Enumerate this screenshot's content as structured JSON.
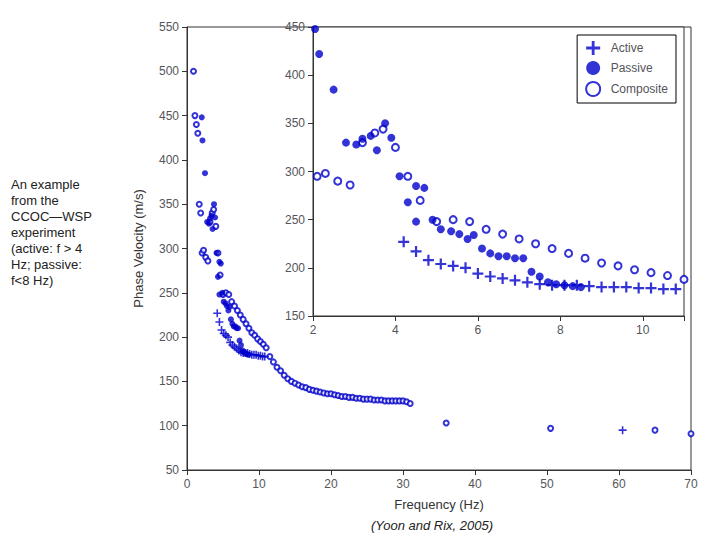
{
  "chart_data": [
    {
      "type": "scatter",
      "title": "An example\nfrom the\nCCOC—WSP\nexperiment\n(active: f > 4\nHz; passive:\nf<8 Hz)",
      "annotation": "(Yoon and Rix, 2005)",
      "xlabel": "Frequency (Hz)",
      "ylabel": "Phase Velocity (m/s)",
      "xlim": [
        0,
        70
      ],
      "ylim": [
        50,
        550
      ],
      "xticks": [
        0,
        10,
        20,
        30,
        40,
        50,
        60,
        70
      ],
      "yticks": [
        50,
        100,
        150,
        200,
        250,
        300,
        350,
        400,
        450,
        500,
        550
      ],
      "grid": false,
      "color": "#0000CC",
      "series": [
        {
          "name": "Active",
          "marker": "plus",
          "x": [
            4.2,
            4.5,
            4.8,
            5.1,
            5.4,
            5.7,
            6.0,
            6.3,
            6.6,
            6.9,
            7.2,
            7.5,
            7.8,
            8.1,
            8.4,
            8.7,
            9.0,
            9.3,
            9.6,
            9.9,
            10.2,
            10.5,
            10.8,
            60.5
          ],
          "values": [
            227,
            217,
            208,
            204,
            202,
            200,
            194,
            191,
            189,
            187,
            185,
            183,
            182,
            182,
            182,
            181,
            180,
            180,
            180,
            179,
            179,
            178,
            178,
            95
          ]
        },
        {
          "name": "Passive",
          "marker": "circle",
          "x": [
            2.05,
            2.15,
            2.5,
            2.8,
            3.05,
            3.2,
            3.4,
            3.55,
            3.75,
            3.9,
            4.1,
            4.3,
            4.5,
            4.5,
            4.7,
            4.9,
            5.1,
            5.35,
            5.55,
            5.75,
            5.9,
            6.1,
            6.3,
            6.5,
            6.7,
            6.9,
            7.1,
            7.3,
            7.5,
            7.7,
            7.9,
            8.1,
            8.3,
            8.5
          ],
          "values": [
            448,
            422,
            385,
            330,
            328,
            334,
            337,
            322,
            350,
            335,
            295,
            268,
            248,
            285,
            283,
            250,
            240,
            238,
            235,
            230,
            234,
            220,
            215,
            212,
            212,
            210,
            210,
            196,
            191,
            185,
            183,
            182,
            181,
            180
          ]
        },
        {
          "name": "Composite",
          "marker": "open_circle",
          "x": [
            0.9,
            1.1,
            1.3,
            1.5,
            1.7,
            1.9,
            2.1,
            2.3,
            2.6,
            2.9,
            3.2,
            3.5,
            3.7,
            4.0,
            4.3,
            4.6,
            5.0,
            5.4,
            5.8,
            6.2,
            6.6,
            7.0,
            7.4,
            7.8,
            8.2,
            8.6,
            9.0,
            9.4,
            9.8,
            10.2,
            10.6,
            11.0,
            11.5,
            12.0,
            12.5,
            13.0,
            13.5,
            14.0,
            14.5,
            15.0,
            15.5,
            16.0,
            16.5,
            17.0,
            17.5,
            18.0,
            18.5,
            19.0,
            19.5,
            20.0,
            20.5,
            21.0,
            21.5,
            22.0,
            22.5,
            23.0,
            23.5,
            24.0,
            24.5,
            25.0,
            25.5,
            26.0,
            26.5,
            27.0,
            27.5,
            28.0,
            28.5,
            29.0,
            29.5,
            30.0,
            30.5,
            31.0,
            36.0,
            50.5,
            65.0,
            70.0
          ],
          "values": [
            500,
            450,
            440,
            430,
            350,
            340,
            295,
            298,
            290,
            286,
            330,
            340,
            344,
            325,
            295,
            270,
            248,
            250,
            248,
            240,
            235,
            230,
            225,
            220,
            215,
            210,
            205,
            202,
            198,
            195,
            192,
            188,
            178,
            172,
            166,
            162,
            157,
            153,
            150,
            148,
            146,
            144,
            143,
            141,
            140,
            139,
            138,
            137,
            136,
            136,
            135,
            134,
            133,
            133,
            132,
            132,
            131,
            131,
            130,
            130,
            130,
            129,
            129,
            129,
            128,
            128,
            128,
            128,
            128,
            128,
            127,
            125,
            103,
            97,
            95,
            91
          ]
        }
      ]
    },
    {
      "type": "scatter",
      "xlim": [
        2,
        11
      ],
      "ylim": [
        150,
        450
      ],
      "xticks": [
        2,
        4,
        6,
        8,
        10
      ],
      "yticks": [
        150,
        200,
        250,
        300,
        350,
        400,
        450
      ],
      "grid": false,
      "legend": "upper right",
      "color": "#0000CC",
      "series": [
        {
          "name": "Active",
          "marker": "plus",
          "x": [
            4.2,
            4.5,
            4.8,
            5.1,
            5.4,
            5.7,
            6.0,
            6.3,
            6.6,
            6.9,
            7.2,
            7.5,
            7.8,
            8.1,
            8.4,
            8.7,
            9.0,
            9.3,
            9.6,
            9.9,
            10.2,
            10.5,
            10.8
          ],
          "values": [
            227,
            217,
            208,
            204,
            202,
            200,
            194,
            191,
            189,
            187,
            185,
            183,
            182,
            182,
            182,
            181,
            180,
            180,
            180,
            179,
            179,
            178,
            178
          ]
        },
        {
          "name": "Passive",
          "marker": "circle",
          "x": [
            2.05,
            2.15,
            2.5,
            2.8,
            3.05,
            3.2,
            3.4,
            3.55,
            3.75,
            3.9,
            4.1,
            4.3,
            4.5,
            4.5,
            4.7,
            4.9,
            5.1,
            5.35,
            5.55,
            5.75,
            5.9,
            6.1,
            6.3,
            6.5,
            6.7,
            6.9,
            7.1,
            7.3,
            7.5,
            7.7,
            7.9,
            8.1,
            8.3,
            8.5
          ],
          "values": [
            448,
            422,
            385,
            330,
            328,
            334,
            337,
            322,
            350,
            335,
            295,
            268,
            248,
            285,
            283,
            250,
            240,
            238,
            235,
            230,
            234,
            220,
            215,
            212,
            212,
            210,
            210,
            196,
            191,
            185,
            183,
            182,
            181,
            180
          ]
        },
        {
          "name": "Composite",
          "marker": "open_circle",
          "x": [
            2.1,
            2.3,
            2.6,
            2.9,
            3.2,
            3.5,
            3.7,
            4.0,
            4.3,
            4.6,
            5.0,
            5.4,
            5.8,
            6.2,
            6.6,
            7.0,
            7.4,
            7.8,
            8.2,
            8.6,
            9.0,
            9.4,
            9.8,
            10.2,
            10.6,
            11.0
          ],
          "values": [
            295,
            298,
            290,
            286,
            330,
            340,
            344,
            325,
            295,
            270,
            248,
            250,
            248,
            240,
            235,
            230,
            225,
            220,
            215,
            210,
            205,
            202,
            198,
            195,
            192,
            188
          ]
        }
      ]
    }
  ]
}
